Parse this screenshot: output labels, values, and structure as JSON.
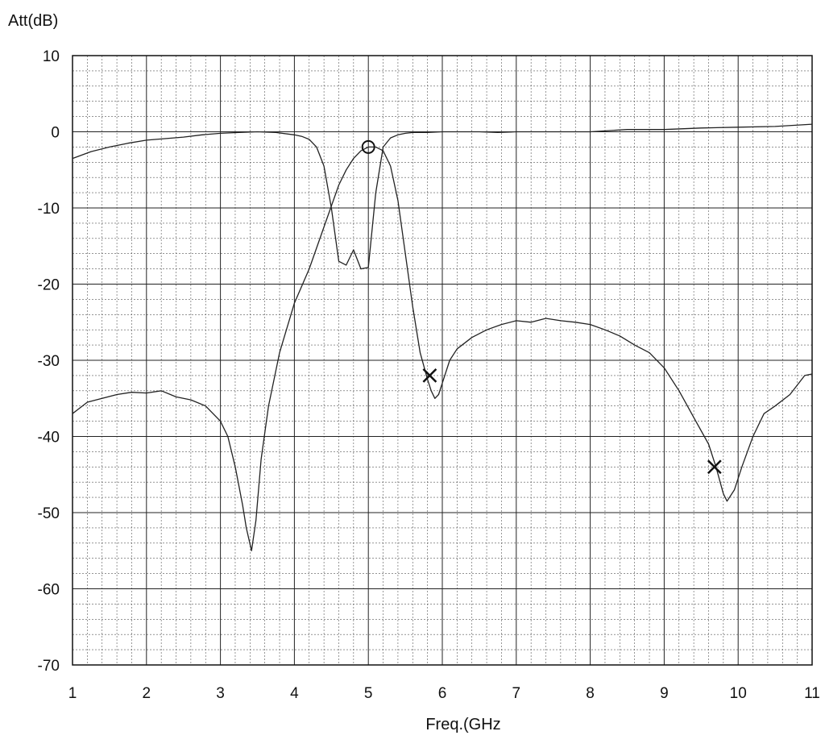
{
  "chart_data": {
    "type": "line",
    "title": "",
    "xlabel": "Freq.(GHz",
    "ylabel": "Att(dB)",
    "xlim": [
      1,
      11
    ],
    "ylim": [
      -70,
      10
    ],
    "x_ticks": [
      "1",
      "2",
      "3",
      "4",
      "5",
      "6",
      "7",
      "8",
      "9",
      "10",
      "11"
    ],
    "y_ticks": [
      "10",
      "0",
      "-10",
      "-20",
      "-30",
      "-40",
      "-50",
      "-60",
      "-70"
    ],
    "x_tick_values": [
      1,
      2,
      3,
      4,
      5,
      6,
      7,
      8,
      9,
      10,
      11
    ],
    "y_tick_values": [
      10,
      0,
      -10,
      -20,
      -30,
      -40,
      -50,
      -60,
      -70
    ],
    "grid": true,
    "minor_grid": true,
    "legend": "none",
    "line_color": "#222222",
    "series": [
      {
        "x": [
          1.0,
          1.25,
          1.5,
          1.75,
          2.0,
          2.25,
          2.5,
          2.75,
          3.0,
          3.25,
          3.5,
          3.75,
          4.0,
          4.1,
          4.2,
          4.3,
          4.4,
          4.5,
          4.6,
          4.7,
          4.8,
          4.9,
          5.0,
          5.1,
          5.2,
          5.3,
          5.4,
          5.5,
          5.6,
          5.7,
          5.8,
          6.0,
          6.25,
          6.5,
          6.75,
          7.0,
          7.5,
          8.0,
          8.5,
          9.0,
          9.5,
          10.0,
          10.5,
          11.0
        ],
        "values": [
          -3.5,
          -2.6,
          -2.0,
          -1.5,
          -1.1,
          -0.9,
          -0.7,
          -0.4,
          -0.2,
          -0.1,
          0.0,
          -0.1,
          -0.4,
          -0.6,
          -1.0,
          -2.0,
          -4.5,
          -10.0,
          -17.0,
          -17.5,
          -15.5,
          -18.0,
          -17.8,
          -8.0,
          -2.0,
          -0.8,
          -0.4,
          -0.2,
          -0.1,
          -0.1,
          -0.1,
          0.0,
          0.0,
          0.0,
          -0.1,
          0.0,
          0.0,
          0.0,
          0.3,
          0.3,
          0.5,
          0.6,
          0.7,
          1.0
        ]
      },
      {
        "x": [
          1.0,
          1.2,
          1.4,
          1.6,
          1.8,
          2.0,
          2.2,
          2.4,
          2.6,
          2.8,
          3.0,
          3.1,
          3.2,
          3.3,
          3.35,
          3.42,
          3.48,
          3.55,
          3.65,
          3.8,
          4.0,
          4.2,
          4.4,
          4.6,
          4.7,
          4.8,
          4.9,
          5.0,
          5.1,
          5.2,
          5.3,
          5.4,
          5.5,
          5.6,
          5.7,
          5.8,
          5.85,
          5.9,
          5.95,
          6.0,
          6.1,
          6.2,
          6.4,
          6.6,
          6.8,
          7.0,
          7.2,
          7.4,
          7.6,
          7.8,
          8.0,
          8.2,
          8.4,
          8.6,
          8.8,
          9.0,
          9.2,
          9.4,
          9.6,
          9.7,
          9.8,
          9.85,
          9.95,
          10.05,
          10.2,
          10.35,
          10.5,
          10.7,
          10.9,
          11.0
        ],
        "values": [
          -37,
          -35.5,
          -35,
          -34.5,
          -34.2,
          -34.3,
          -34.0,
          -34.8,
          -35.2,
          -36.0,
          -38.0,
          -40.0,
          -44.0,
          -49.0,
          -52.0,
          -55.0,
          -51.0,
          -43.0,
          -36.0,
          -29.0,
          -22.5,
          -18.0,
          -12.5,
          -7.0,
          -5.0,
          -3.5,
          -2.5,
          -2.0,
          -2.0,
          -2.5,
          -4.5,
          -9.0,
          -16.0,
          -23.0,
          -29.0,
          -32.5,
          -34.0,
          -35.0,
          -34.5,
          -33.0,
          -30.0,
          -28.5,
          -27.0,
          -26.0,
          -25.3,
          -24.8,
          -25.0,
          -24.5,
          -24.8,
          -25.0,
          -25.3,
          -26.0,
          -26.8,
          -28.0,
          -29.0,
          -31.0,
          -34.0,
          -37.5,
          -41.0,
          -44.0,
          -47.5,
          -48.5,
          -47.0,
          -44.0,
          -40.0,
          -37.0,
          -36.0,
          -34.5,
          -32.0,
          -31.8
        ]
      }
    ],
    "annotations": [
      {
        "marker": "○",
        "x": 5.0,
        "y": -2.0
      },
      {
        "marker": "×",
        "x": 5.83,
        "y": -32.0
      },
      {
        "marker": "×",
        "x": 9.68,
        "y": -44.0
      }
    ]
  }
}
